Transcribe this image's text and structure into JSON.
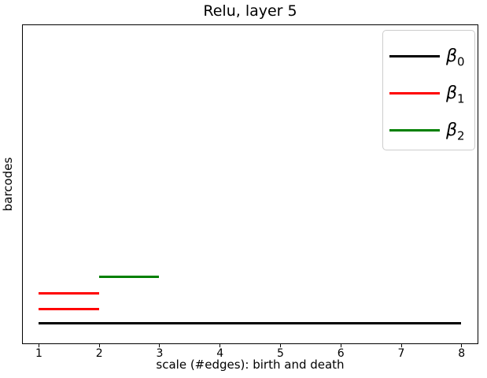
{
  "chart_data": {
    "type": "line",
    "variant": "persistence-barcode",
    "title": "Relu, layer 5",
    "xlabel": "scale (#edges): birth and death",
    "ylabel": "barcodes",
    "xlim": [
      0.74,
      8.27
    ],
    "ylim": [
      0,
      1
    ],
    "x_ticks": [
      1,
      2,
      3,
      4,
      5,
      6,
      7,
      8
    ],
    "y_ticks": [],
    "grid": false,
    "background_color": "#ffffff",
    "axis_color": "#000000",
    "legend": {
      "position": "upper-right",
      "border_color": "#cccccc",
      "entries": [
        {
          "name": "beta-0",
          "symbol": "β",
          "subscript": "0",
          "color": "#000000"
        },
        {
          "name": "beta-1",
          "symbol": "β",
          "subscript": "1",
          "color": "#ff0000"
        },
        {
          "name": "beta-2",
          "symbol": "β",
          "subscript": "2",
          "color": "#008000"
        }
      ]
    },
    "bars": [
      {
        "series": "β0",
        "birth": 1,
        "death": 8,
        "y_frac": 0.063,
        "color": "#000000"
      },
      {
        "series": "β1",
        "birth": 1,
        "death": 2,
        "y_frac": 0.108,
        "color": "#ff0000"
      },
      {
        "series": "β1",
        "birth": 1,
        "death": 2,
        "y_frac": 0.158,
        "color": "#ff0000"
      },
      {
        "series": "β2",
        "birth": 2,
        "death": 3,
        "y_frac": 0.208,
        "color": "#008000"
      }
    ]
  }
}
